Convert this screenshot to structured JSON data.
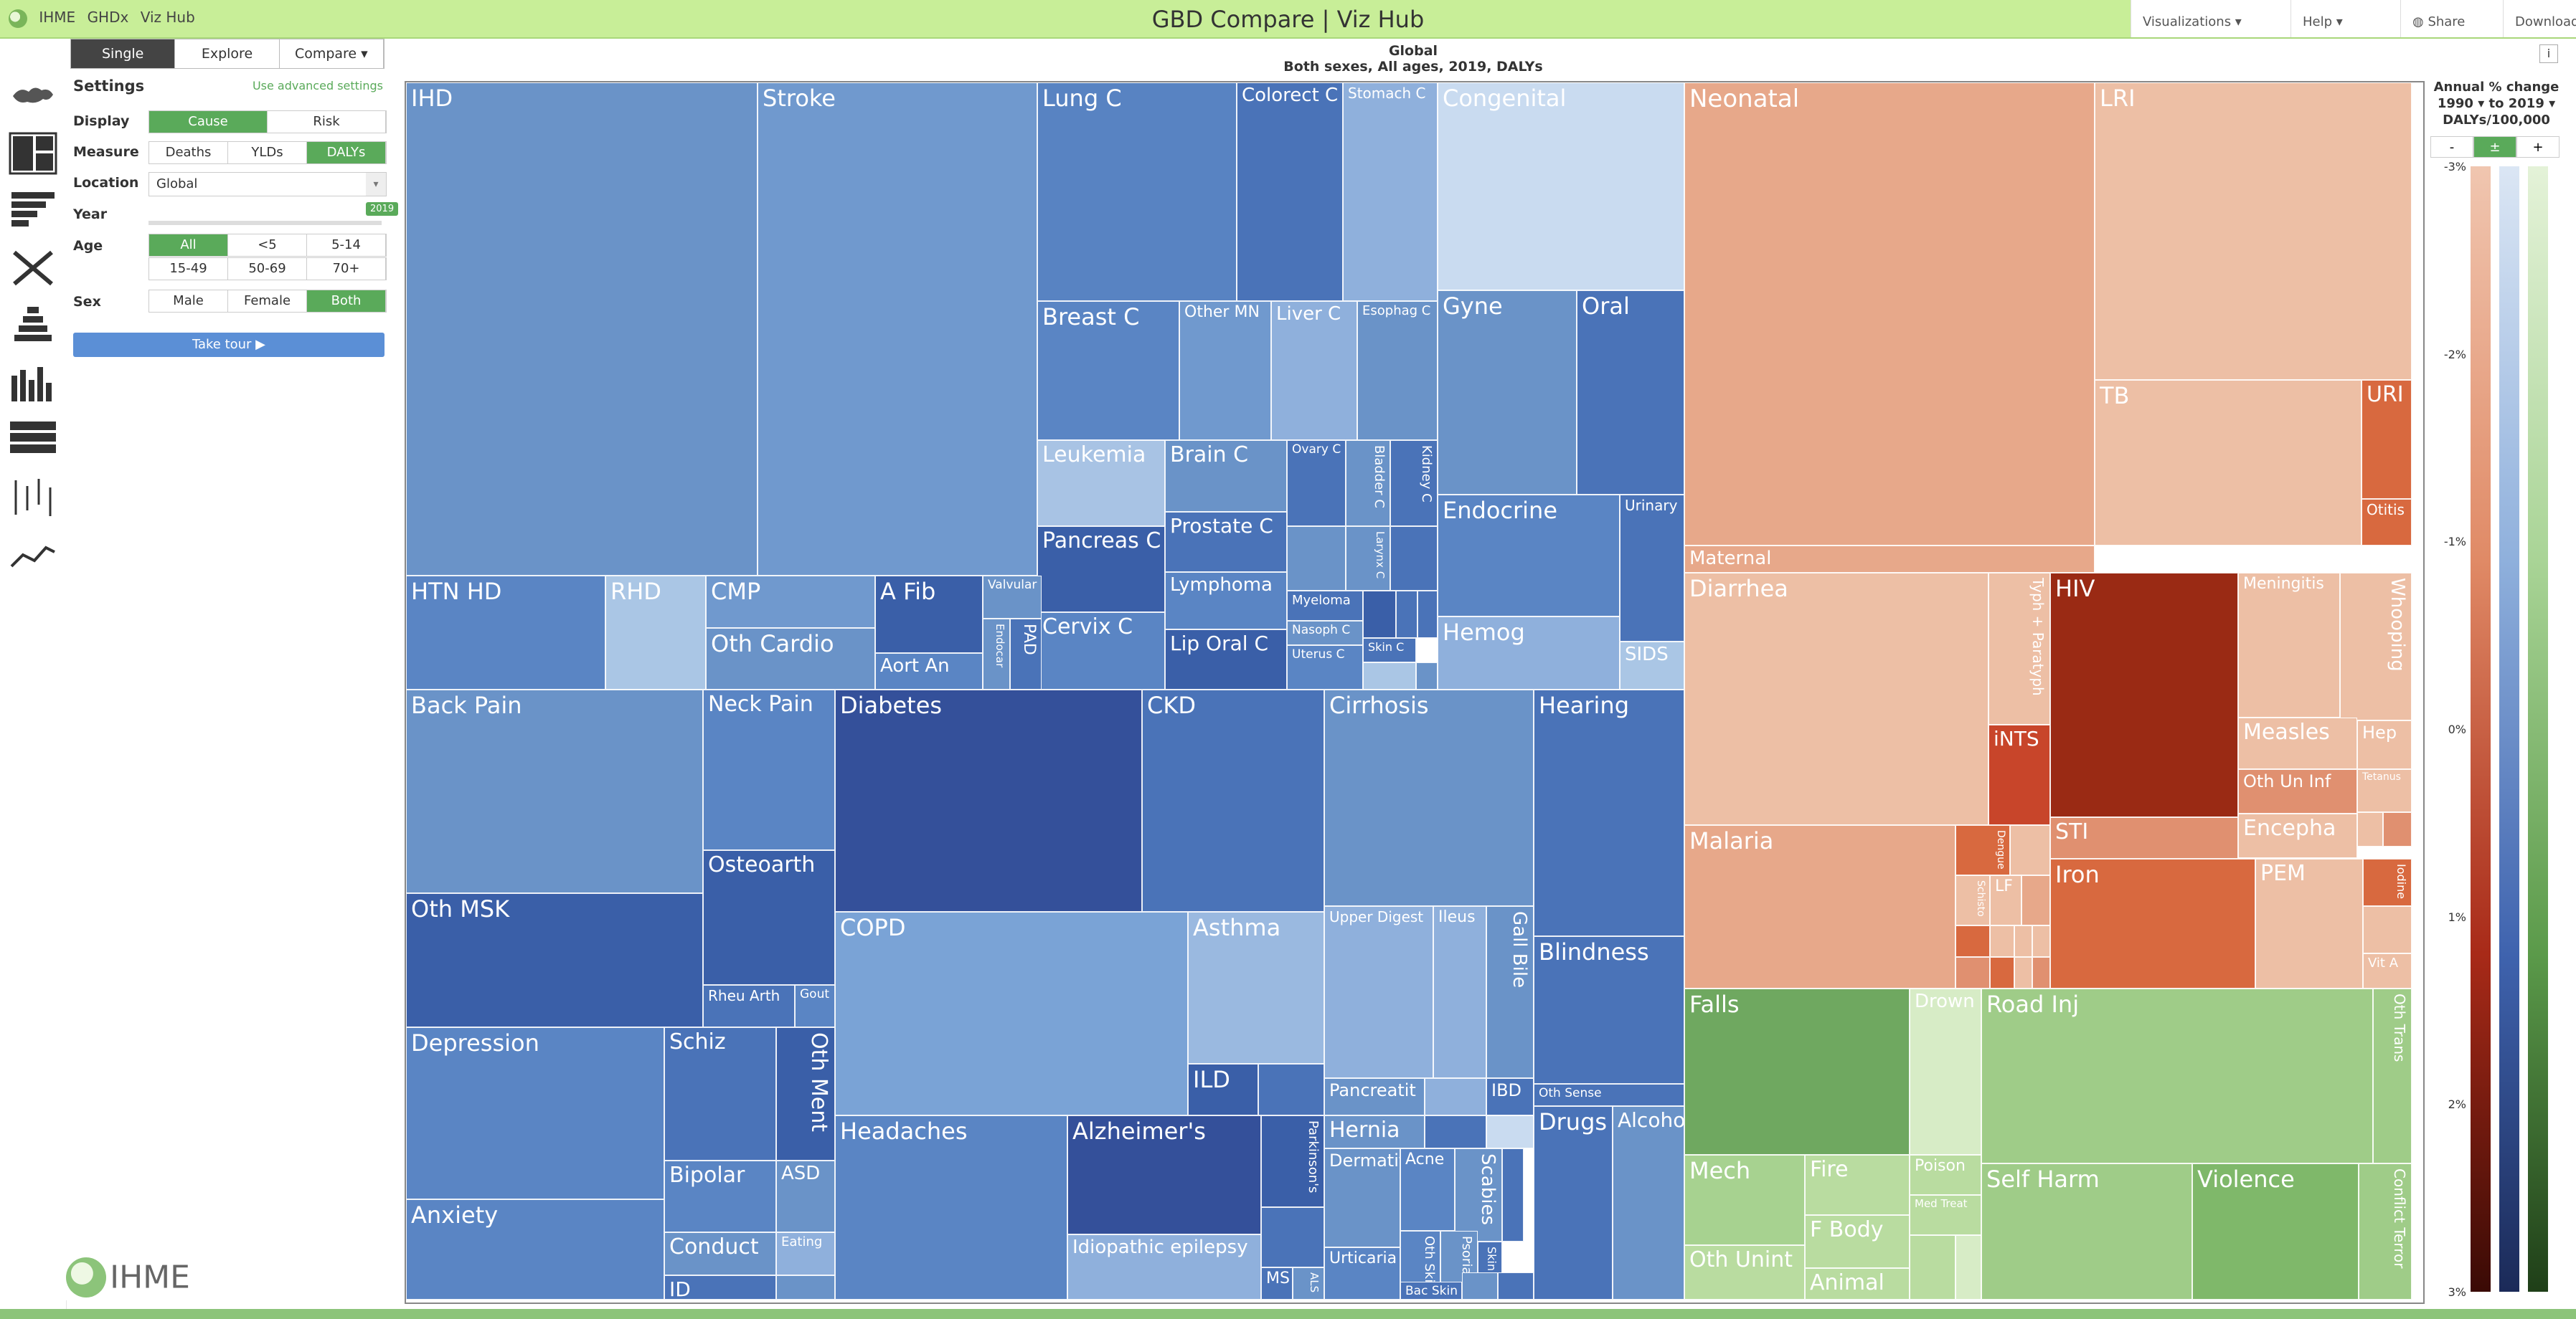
{
  "topbar": {
    "brand": [
      "IHME",
      "GHDx",
      "Viz Hub"
    ],
    "title": "GBD Compare | Viz Hub",
    "menu": [
      "Visualizations ▾",
      "Help ▾",
      "Share",
      "Download"
    ]
  },
  "tabs": [
    "Single",
    "Explore",
    "Compare ▾"
  ],
  "settings": {
    "heading": "Settings",
    "advanced_link": "Use advanced settings",
    "display_label": "Display",
    "display_options": [
      "Cause",
      "Risk"
    ],
    "measure_label": "Measure",
    "measure_options": [
      "Deaths",
      "YLDs",
      "DALYs"
    ],
    "location_label": "Location",
    "location_value": "Global",
    "year_label": "Year",
    "year_value": "2019",
    "age_label": "Age",
    "age_options": [
      "All",
      "<5",
      "5-14",
      "15-49",
      "50-69",
      "70+"
    ],
    "sex_label": "Sex",
    "sex_options": [
      "Male",
      "Female",
      "Both"
    ],
    "tour_button": "Take tour ▶",
    "footer_logo": "IHME"
  },
  "chart": {
    "title": "Global",
    "subtitle": "Both sexes, All ages, 2019, DALYs",
    "info": "i"
  },
  "legend": {
    "title": [
      "Annual % change",
      "1990",
      "to 2019",
      "DALYs/100,000"
    ],
    "buttons": [
      "-",
      "±",
      "+"
    ],
    "ticks": [
      "-3%",
      "-2%",
      "-1%",
      "0%",
      "1%",
      "2%",
      "3%"
    ]
  },
  "colors": {
    "blue_mid": "#6a93c8",
    "blue_dark": "#3a5fa8",
    "blue_light": "#aac6e5",
    "orange": "#e7a88a",
    "red": "#a32a18",
    "green": "#6fa860",
    "green_light": "#b9dca0"
  }
}
